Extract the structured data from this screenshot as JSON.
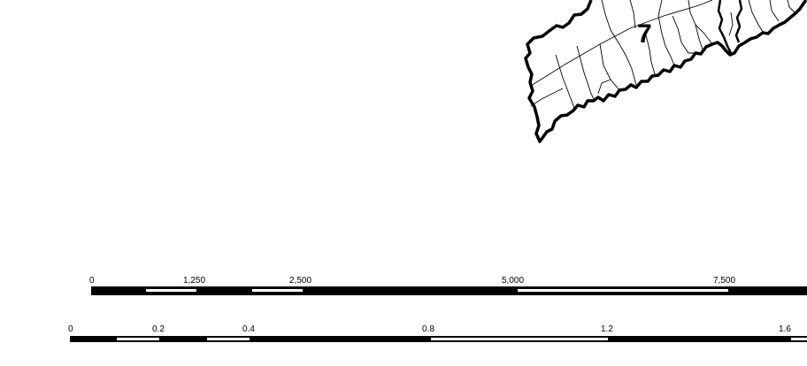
{
  "map": {
    "region_label": "7",
    "colors": {
      "background": "#ffffff",
      "boundary": "#000000",
      "scale_fill": "#000000",
      "scale_gap": "#ffffff"
    }
  },
  "scale_bars": [
    {
      "id": "scale-bar-1",
      "labels": [
        "0",
        "1,250",
        "2,500",
        "5,000",
        "7,500"
      ],
      "values": [
        0,
        1250,
        2500,
        5000,
        7500
      ]
    },
    {
      "id": "scale-bar-2",
      "labels": [
        "0",
        "0.2",
        "0.4",
        "0.8",
        "1.2",
        "1.6"
      ],
      "values": [
        0,
        0.2,
        0.4,
        0.8,
        1.2,
        1.6
      ]
    }
  ]
}
